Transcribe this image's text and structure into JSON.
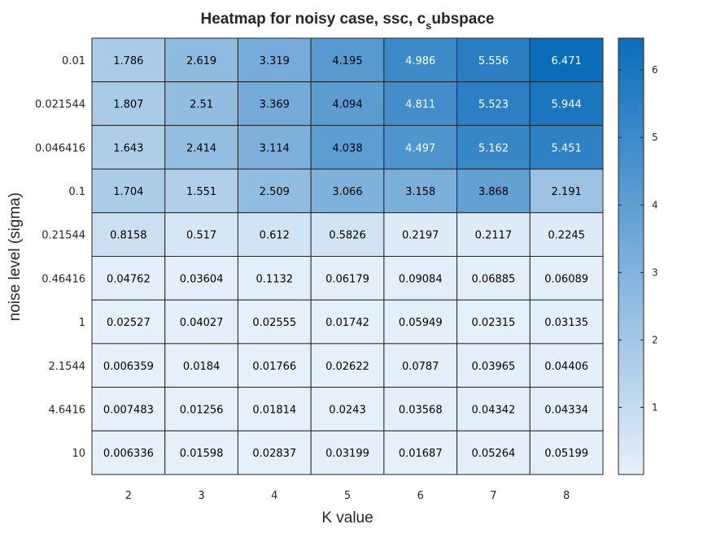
{
  "chart_data": {
    "type": "heatmap",
    "title_main": "Heatmap for noisy case, ssc, c",
    "title_sub": "s",
    "title_rest": "ubspace",
    "xlabel": "K value",
    "ylabel": "noise level (sigma)",
    "x_categories": [
      "2",
      "3",
      "4",
      "5",
      "6",
      "7",
      "8"
    ],
    "y_categories": [
      "0.01",
      "0.021544",
      "0.046416",
      "0.1",
      "0.21544",
      "0.46416",
      "1",
      "2.1544",
      "4.6416",
      "10"
    ],
    "values": [
      [
        "1.786",
        "2.619",
        "3.319",
        "4.195",
        "4.986",
        "5.556",
        "6.471"
      ],
      [
        "1.807",
        "2.51",
        "3.369",
        "4.094",
        "4.811",
        "5.523",
        "5.944"
      ],
      [
        "1.643",
        "2.414",
        "3.114",
        "4.038",
        "4.497",
        "5.162",
        "5.451"
      ],
      [
        "1.704",
        "1.551",
        "2.509",
        "3.066",
        "3.158",
        "3.868",
        "2.191"
      ],
      [
        "0.8158",
        "0.517",
        "0.612",
        "0.5826",
        "0.2197",
        "0.2117",
        "0.2245"
      ],
      [
        "0.04762",
        "0.03604",
        "0.1132",
        "0.06179",
        "0.09084",
        "0.06885",
        "0.06089"
      ],
      [
        "0.02527",
        "0.04027",
        "0.02555",
        "0.01742",
        "0.05949",
        "0.02315",
        "0.03135"
      ],
      [
        "0.006359",
        "0.0184",
        "0.01766",
        "0.02622",
        "0.0787",
        "0.03965",
        "0.04406"
      ],
      [
        "0.007483",
        "0.01256",
        "0.01814",
        "0.0243",
        "0.03568",
        "0.04342",
        "0.04334"
      ],
      [
        "0.006336",
        "0.01598",
        "0.02837",
        "0.03199",
        "0.01687",
        "0.05264",
        "0.05199"
      ]
    ],
    "colorbar": {
      "min": 0.006336,
      "max": 6.471,
      "ticks": [
        "1",
        "2",
        "3",
        "4",
        "5",
        "6"
      ],
      "color_low": "#e6f0f9",
      "color_high": "#0b6cba"
    },
    "grid": true,
    "colors": {
      "text_dark": "#000000",
      "text_light": "#ffffff",
      "cell_border": "#262626"
    }
  }
}
